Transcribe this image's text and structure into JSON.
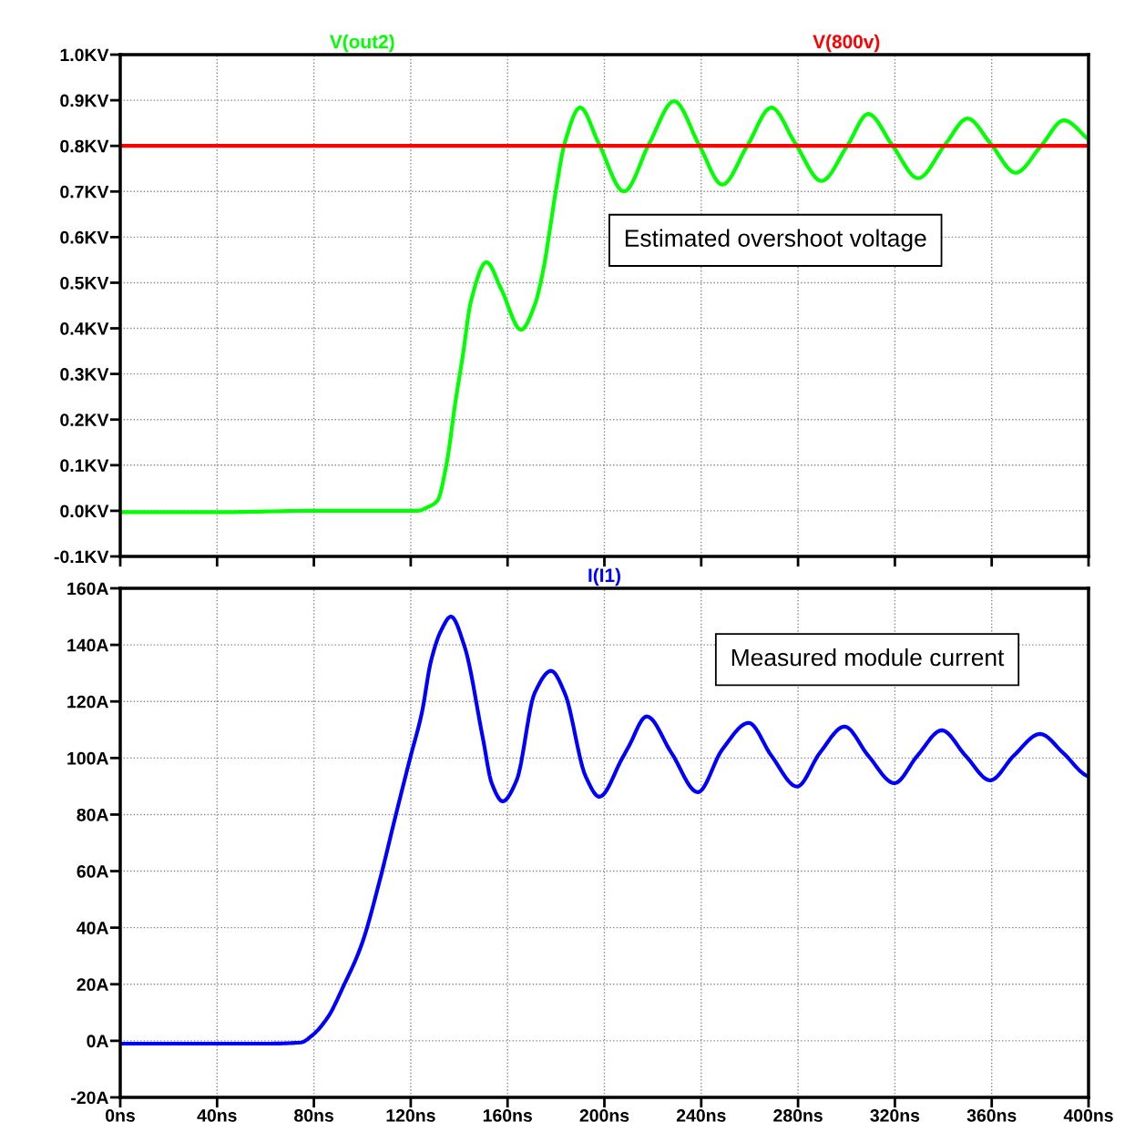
{
  "chart_data": [
    {
      "type": "line",
      "tick_labels": "y",
      "grid": true,
      "legend": "top",
      "marker": "none",
      "line_style": "solid",
      "xlim": [
        0,
        400
      ],
      "xticks": [
        {
          "value": 0,
          "label": null
        },
        {
          "value": 40,
          "label": null
        },
        {
          "value": 80,
          "label": null
        },
        {
          "value": 120,
          "label": null
        },
        {
          "value": 160,
          "label": null
        },
        {
          "value": 200,
          "label": null
        },
        {
          "value": 240,
          "label": null
        },
        {
          "value": 280,
          "label": null
        },
        {
          "value": 320,
          "label": null
        },
        {
          "value": 360,
          "label": null
        },
        {
          "value": 400,
          "label": null
        }
      ],
      "ylim": [
        -0.1,
        1.0
      ],
      "yticks": [
        {
          "value": -0.1,
          "label": "-0.1KV"
        },
        {
          "value": 0.0,
          "label": "0.0KV"
        },
        {
          "value": 0.1,
          "label": "0.1KV"
        },
        {
          "value": 0.2,
          "label": "0.2KV"
        },
        {
          "value": 0.3,
          "label": "0.3KV"
        },
        {
          "value": 0.4,
          "label": "0.4KV"
        },
        {
          "value": 0.5,
          "label": "0.5KV"
        },
        {
          "value": 0.6,
          "label": "0.6KV"
        },
        {
          "value": 0.7,
          "label": "0.7KV"
        },
        {
          "value": 0.8,
          "label": "0.8KV"
        },
        {
          "value": 0.9,
          "label": "0.9KV"
        },
        {
          "value": 1.0,
          "label": "1.0KV"
        }
      ],
      "annotations": [
        "Estimated overshoot voltage"
      ],
      "series": [
        {
          "name": "V(out2)",
          "color": "#00ff00",
          "x": [
            0,
            40,
            80,
            100,
            122.7,
            127,
            131,
            134.7,
            138.5,
            141.5,
            144.9,
            151.3,
            157.3,
            165.6,
            171.2,
            175,
            177.2,
            179.9,
            183.6,
            190,
            197.6,
            208.1,
            218.6,
            228.8,
            239.3,
            248.7,
            259,
            269,
            278.8,
            289.7,
            300.3,
            309,
            319.1,
            329.6,
            340.9,
            350,
            359.4,
            369.9,
            380.4,
            389.8,
            400
          ],
          "values": [
            -0.003,
            -0.003,
            0.0,
            0.0,
            0.0,
            0.008,
            0.022,
            0.1,
            0.24,
            0.34,
            0.46,
            0.545,
            0.487,
            0.397,
            0.451,
            0.535,
            0.607,
            0.7,
            0.806,
            0.884,
            0.806,
            0.7,
            0.806,
            0.898,
            0.8,
            0.715,
            0.8,
            0.884,
            0.806,
            0.723,
            0.8,
            0.87,
            0.8,
            0.729,
            0.804,
            0.86,
            0.806,
            0.741,
            0.8,
            0.856,
            0.814
          ]
        },
        {
          "name": "V(800v)",
          "color": "#ff0000",
          "x": [
            0,
            400
          ],
          "values": [
            0.8,
            0.8
          ]
        }
      ]
    },
    {
      "type": "line",
      "grid": true,
      "legend": "top",
      "marker": "none",
      "line_style": "solid",
      "xlim": [
        0,
        400
      ],
      "xticks": [
        {
          "value": 0,
          "label": "0ns"
        },
        {
          "value": 40,
          "label": "40ns"
        },
        {
          "value": 80,
          "label": "80ns"
        },
        {
          "value": 120,
          "label": "120ns"
        },
        {
          "value": 160,
          "label": "160ns"
        },
        {
          "value": 200,
          "label": "200ns"
        },
        {
          "value": 240,
          "label": "240ns"
        },
        {
          "value": 280,
          "label": "280ns"
        },
        {
          "value": 320,
          "label": "320ns"
        },
        {
          "value": 360,
          "label": "360ns"
        },
        {
          "value": 400,
          "label": "400ns"
        }
      ],
      "ylim": [
        -20,
        160
      ],
      "yticks": [
        {
          "value": -20,
          "label": "-20A"
        },
        {
          "value": 0,
          "label": "0A"
        },
        {
          "value": 20,
          "label": "20A"
        },
        {
          "value": 40,
          "label": "40A"
        },
        {
          "value": 60,
          "label": "60A"
        },
        {
          "value": 80,
          "label": "80A"
        },
        {
          "value": 100,
          "label": "100A"
        },
        {
          "value": 120,
          "label": "120A"
        },
        {
          "value": 140,
          "label": "140A"
        },
        {
          "value": 160,
          "label": "160A"
        }
      ],
      "annotations": [
        "Measured module current"
      ],
      "series": [
        {
          "name": "I(I1)",
          "color": "#0000ff",
          "x": [
            0,
            20,
            40,
            60,
            74.5,
            79.4,
            85.8,
            92.2,
            99.7,
            107.2,
            113.3,
            119.7,
            124.6,
            128.3,
            132.5,
            136.6,
            142.2,
            149.8,
            153.5,
            158,
            163.7,
            171.2,
            178,
            183.6,
            192.3,
            197.9,
            207.3,
            210,
            217.5,
            227.7,
            238.6,
            248.7,
            259.6,
            269,
            279.6,
            289,
            299.2,
            309,
            319.8,
            329.3,
            339.4,
            349.2,
            359.4,
            369.1,
            380,
            389.5,
            399.3,
            400
          ],
          "values": [
            -1,
            -1,
            -1,
            -1,
            -0.6,
            2,
            8.4,
            19.3,
            34,
            56.7,
            78,
            99.8,
            116,
            134,
            145,
            150,
            139.5,
            107,
            91,
            84.7,
            92,
            123,
            130.8,
            123,
            93.4,
            86.3,
            99.8,
            104,
            114.7,
            101.8,
            87.9,
            103,
            112.4,
            100.8,
            89.9,
            101.8,
            111.1,
            100.8,
            91.1,
            100.8,
            109.8,
            100.8,
            92.1,
            100.8,
            108.5,
            101.8,
            93.7,
            93.5
          ]
        }
      ]
    }
  ]
}
